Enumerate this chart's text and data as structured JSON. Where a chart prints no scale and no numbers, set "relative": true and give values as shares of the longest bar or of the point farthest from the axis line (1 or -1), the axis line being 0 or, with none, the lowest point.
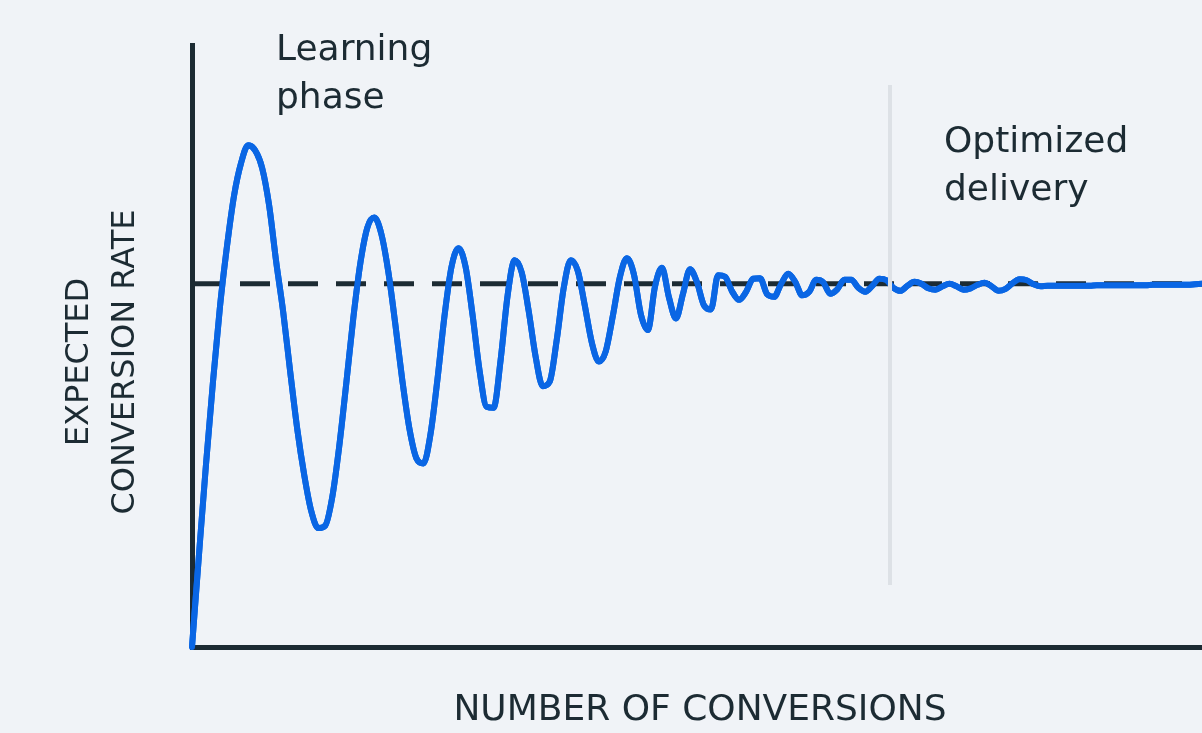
{
  "chart_data": {
    "type": "line",
    "relative": true,
    "xlabel": "NUMBER OF CONVERSIONS",
    "ylabel": "EXPECTED CONVERSION RATE",
    "annotations": [
      "Learning phase",
      "Optimized delivery"
    ],
    "categories": [
      null,
      null,
      null,
      null,
      null,
      null,
      null,
      null,
      null,
      null,
      null,
      null,
      null,
      null,
      null,
      null,
      null,
      null,
      null,
      null,
      null,
      null,
      null,
      null,
      null,
      null,
      null,
      null,
      null,
      null,
      null,
      null,
      null,
      null,
      null,
      null,
      null,
      null,
      null,
      null,
      null,
      null,
      null,
      null,
      null,
      null,
      null,
      null,
      null,
      null,
      null,
      null,
      null,
      null,
      null,
      null,
      null,
      null,
      null,
      null,
      null,
      null,
      null,
      null,
      null,
      null,
      null,
      null,
      null,
      null,
      null,
      null,
      null,
      null,
      null,
      null,
      null,
      null,
      null,
      null,
      null,
      null,
      null,
      null,
      null,
      null,
      null,
      null,
      null,
      null,
      null,
      null,
      null,
      null,
      null,
      null,
      null,
      null,
      null,
      null,
      null,
      null,
      null,
      null,
      null,
      null,
      null,
      null,
      null,
      null,
      null,
      null,
      null,
      null,
      null,
      null,
      null,
      null,
      null,
      null,
      null,
      null,
      null,
      null,
      null,
      null,
      null,
      null,
      null,
      null,
      null,
      null,
      null,
      null,
      null,
      null,
      null,
      null,
      null,
      null,
      null,
      null,
      null,
      null,
      null
    ],
    "series": [
      {
        "color": "#0a66e4",
        "values": [
          0,
          0.185,
          0.365,
          0.53,
          0.68,
          0.8,
          0.9,
          0.965,
          1,
          0.99,
          0.955,
          0.88,
          0.768,
          0.668,
          0.549,
          0.435,
          0.343,
          0.271,
          0.237,
          0.242,
          0.299,
          0.401,
          0.526,
          0.656,
          0.765,
          0.836,
          0.856,
          0.823,
          0.747,
          0.642,
          0.53,
          0.435,
          0.376,
          0.366,
          0.424,
          0.534,
          0.66,
          0.758,
          0.795,
          0.758,
          0.662,
          0.551,
          0.479,
          0.477,
          0.572,
          0.701,
          0.771,
          0.747,
          0.67,
          0.578,
          0.52,
          0.529,
          0.612,
          0.716,
          0.771,
          0.75,
          0.681,
          0.607,
          0.569,
          0.59,
          0.66,
          0.737,
          0.775,
          0.743,
          0.663,
          0.632,
          0.718,
          0.756,
          0.697,
          0.655,
          0.704,
          0.753,
          0.727,
          0.681,
          0.673,
          0.741,
          0.738,
          0.709,
          0.692,
          0.708,
          0.734,
          0.735,
          0.703,
          0.698,
          0.724,
          0.744,
          0.728,
          0.701,
          0.708,
          0.732,
          0.727,
          0.704,
          0.713,
          0.732,
          0.732,
          0.716,
          0.708,
          0.72,
          0.734,
          0.731,
          0.716,
          0.71,
          0.72,
          0.728,
          0.724,
          0.715,
          0.712,
          0.719,
          0.724,
          0.719,
          0.712,
          0.715,
          0.722,
          0.726,
          0.719,
          0.71,
          0.714,
          0.725,
          0.733,
          0.731,
          0.723,
          0.719,
          0.72,
          0.72,
          0.72,
          0.72,
          0.72,
          0.72,
          0.72,
          0.721,
          0.721,
          0.721,
          0.721,
          0.721,
          0.721,
          0.721,
          0.721,
          0.722,
          0.722,
          0.722,
          0.722,
          0.722,
          0.722,
          0.723,
          0.724
        ]
      }
    ],
    "ref_lines": [
      {
        "axis": "y",
        "value": 0.724,
        "color": "#1c2b33",
        "line_style": "dashed"
      }
    ],
    "grid": false,
    "legend": false,
    "tick_labels": false,
    "marker": "none",
    "line_style": "solid"
  }
}
